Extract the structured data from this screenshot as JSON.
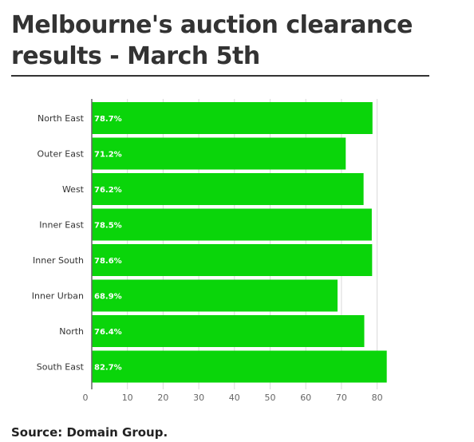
{
  "title": "Melbourne's auction clearance results - March 5th",
  "source": "Source: Domain Group.",
  "colors": {
    "bar": "#0ad50a",
    "bar_label": "#ffffff",
    "grid": "#d9d9d9",
    "axis": "#666666",
    "text": "#333333"
  },
  "chart_data": {
    "type": "bar",
    "orientation": "horizontal",
    "title": "",
    "xlabel": "",
    "ylabel": "",
    "categories": [
      "North East",
      "Outer East",
      "West",
      "Inner East",
      "Inner South",
      "Inner Urban",
      "North",
      "South East"
    ],
    "values": [
      78.7,
      71.2,
      76.2,
      78.5,
      78.6,
      68.9,
      76.4,
      82.7
    ],
    "value_labels": [
      "78.7%",
      "71.2%",
      "76.2%",
      "78.5%",
      "78.6%",
      "68.9%",
      "76.4%",
      "82.7%"
    ],
    "xlim": [
      0,
      80
    ],
    "xticks": [
      0,
      10,
      20,
      30,
      40,
      50,
      60,
      70,
      80
    ],
    "grid": true,
    "legend": "none"
  }
}
